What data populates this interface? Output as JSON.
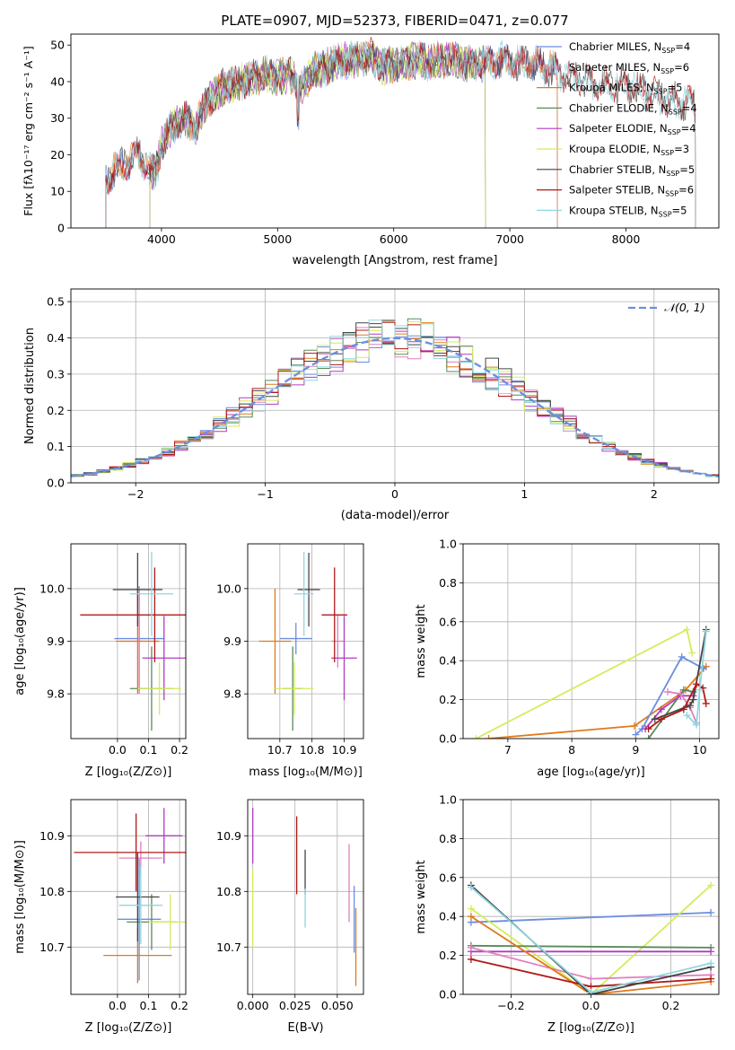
{
  "figure_title": "PLATE=0907, MJD=52373, FIBERID=0471, z=0.077",
  "colors": {
    "Chabrier MILES": "#6a8ee0",
    "Salpeter MILES": "#e07fbf",
    "Kroupa MILES": "#e07a1a",
    "Chabrier ELODIE": "#5a8a5a",
    "Salpeter ELODIE": "#b03cc0",
    "Kroupa ELODIE": "#d4ec5a",
    "Chabrier STELIB": "#444444",
    "Salpeter STELIB": "#b01818",
    "Kroupa STELIB": "#8fd6e0",
    "gaussian": "#6a8ee0"
  },
  "chart_data": [
    {
      "type": "line",
      "id": "spectrum",
      "title": "PLATE=0907, MJD=52373, FIBERID=0471, z=0.077",
      "xlabel": "wavelength [Angstrom, rest frame]",
      "ylabel": "Flux [fλ10⁻¹⁷ erg cm⁻² s⁻¹ A⁻¹]",
      "xlim": [
        3220,
        8800
      ],
      "ylim": [
        0,
        53
      ],
      "xticks": [
        4000,
        5000,
        6000,
        7000,
        8000
      ],
      "yticks": [
        0,
        10,
        20,
        30,
        40,
        50
      ],
      "grid": false,
      "legend_position": "top-right",
      "legend": [
        {
          "label": "Chabrier MILES, N",
          "sub": "SSP",
          "tail": "=4"
        },
        {
          "label": "Salpeter MILES, N",
          "sub": "SSP",
          "tail": "=6"
        },
        {
          "label": "Kroupa MILES, N",
          "sub": "SSP",
          "tail": "=5"
        },
        {
          "label": "Chabrier ELODIE, N",
          "sub": "SSP",
          "tail": "=4"
        },
        {
          "label": "Salpeter ELODIE, N",
          "sub": "SSP",
          "tail": "=4"
        },
        {
          "label": "Kroupa ELODIE, N",
          "sub": "SSP",
          "tail": "=3"
        },
        {
          "label": "Chabrier STELIB, N",
          "sub": "SSP",
          "tail": "=5"
        },
        {
          "label": "Salpeter STELIB, N",
          "sub": "SSP",
          "tail": "=6"
        },
        {
          "label": "Kroupa STELIB, N",
          "sub": "SSP",
          "tail": "=5"
        }
      ],
      "continuum": [
        [
          3500,
          12
        ],
        [
          3600,
          16
        ],
        [
          3700,
          18
        ],
        [
          3800,
          20
        ],
        [
          3900,
          16
        ],
        [
          3950,
          15
        ],
        [
          4000,
          23
        ],
        [
          4100,
          28
        ],
        [
          4200,
          30
        ],
        [
          4300,
          28
        ],
        [
          4400,
          35
        ],
        [
          4500,
          38
        ],
        [
          4600,
          39
        ],
        [
          4700,
          40
        ],
        [
          4800,
          41
        ],
        [
          4900,
          42
        ],
        [
          5000,
          41
        ],
        [
          5100,
          42
        ],
        [
          5175,
          40
        ],
        [
          5200,
          38
        ],
        [
          5300,
          43
        ],
        [
          5400,
          44
        ],
        [
          5500,
          45
        ],
        [
          5600,
          46
        ],
        [
          5700,
          46
        ],
        [
          5800,
          47
        ],
        [
          5900,
          44
        ],
        [
          6000,
          45
        ],
        [
          6100,
          45
        ],
        [
          6200,
          46
        ],
        [
          6300,
          45
        ],
        [
          6400,
          46
        ],
        [
          6500,
          46
        ],
        [
          6600,
          45
        ],
        [
          6700,
          45
        ],
        [
          6800,
          45
        ],
        [
          6900,
          46
        ],
        [
          7000,
          46
        ],
        [
          7100,
          45
        ],
        [
          7200,
          45
        ],
        [
          7300,
          44
        ],
        [
          7400,
          43
        ],
        [
          7500,
          42
        ],
        [
          7600,
          41
        ],
        [
          7700,
          40
        ],
        [
          7800,
          39
        ],
        [
          7900,
          39
        ],
        [
          8000,
          39
        ],
        [
          8100,
          38
        ],
        [
          8200,
          37
        ],
        [
          8300,
          36
        ],
        [
          8400,
          35
        ],
        [
          8600,
          34
        ]
      ],
      "series": [
        {
          "name": "Chabrier MILES",
          "range": [
            3520,
            7410
          ]
        },
        {
          "name": "Salpeter MILES",
          "range": [
            3520,
            7410
          ]
        },
        {
          "name": "Kroupa MILES",
          "range": [
            3520,
            7410
          ]
        },
        {
          "name": "Chabrier ELODIE",
          "range": [
            3900,
            6790
          ]
        },
        {
          "name": "Salpeter ELODIE",
          "range": [
            3900,
            6790
          ]
        },
        {
          "name": "Kroupa ELODIE",
          "range": [
            3900,
            6790
          ]
        },
        {
          "name": "Chabrier STELIB",
          "range": [
            3520,
            8600
          ]
        },
        {
          "name": "Salpeter STELIB",
          "range": [
            3520,
            8600
          ]
        },
        {
          "name": "Kroupa STELIB",
          "range": [
            3520,
            8600
          ]
        }
      ]
    },
    {
      "type": "bar",
      "id": "residuals",
      "xlabel": "(data-model)/error",
      "ylabel": "Normed distribution",
      "xlim": [
        -2.5,
        2.5
      ],
      "ylim": [
        0,
        0.535
      ],
      "xticks": [
        -2,
        -1,
        0,
        1,
        2
      ],
      "yticks": [
        0.0,
        0.1,
        0.2,
        0.3,
        0.4,
        0.5
      ],
      "grid": true,
      "bin_width": 0.1,
      "legend": "𝒩(0, 1)",
      "legend_position": "top-right",
      "reference_curve": "normal(0,1)"
    },
    {
      "type": "scatter",
      "id": "age-vs-Z",
      "xlabel": "Z [log₁₀(Z/Z⊙)]",
      "ylabel": "age  [log₁₀(age/yr)]",
      "xlim": [
        -0.15,
        0.22
      ],
      "ylim": [
        9.715,
        10.085
      ],
      "xticks": [
        0.0,
        0.1,
        0.2
      ],
      "yticks": [
        9.8,
        9.9,
        10.0
      ],
      "grid": true,
      "points": [
        {
          "name": "Chabrier MILES",
          "x": 0.07,
          "xerr": 0.08,
          "y": 9.905,
          "yerr": 0.1
        },
        {
          "name": "Salpeter MILES",
          "x": 0.07,
          "xerr": 0.06,
          "y": 9.9,
          "yerr": 0.1
        },
        {
          "name": "Kroupa MILES",
          "x": 0.065,
          "xerr": 0.07,
          "y": 9.9,
          "yerr": 0.1
        },
        {
          "name": "Chabrier ELODIE",
          "x": 0.11,
          "xerr": 0.07,
          "y": 9.81,
          "yerr": 0.08
        },
        {
          "name": "Salpeter ELODIE",
          "x": 0.15,
          "xerr": 0.07,
          "y": 9.868,
          "yerr": 0.08
        },
        {
          "name": "Kroupa ELODIE",
          "x": 0.135,
          "xerr": 0.07,
          "y": 9.81,
          "yerr": 0.05
        },
        {
          "name": "Chabrier STELIB",
          "x": 0.065,
          "xerr": 0.08,
          "y": 9.998,
          "yerr": 0.07
        },
        {
          "name": "Salpeter STELIB",
          "x": 0.12,
          "xerr": 0.24,
          "y": 9.95,
          "yerr": 0.09
        },
        {
          "name": "Kroupa STELIB",
          "x": 0.11,
          "xerr": 0.07,
          "y": 9.99,
          "yerr": 0.08
        }
      ]
    },
    {
      "type": "scatter",
      "id": "age-vs-mass",
      "xlabel": "mass [log₁₀(M/M⊙)]",
      "xlim": [
        10.6,
        10.96
      ],
      "ylim": [
        9.715,
        10.085
      ],
      "xticks": [
        10.7,
        10.8,
        10.9
      ],
      "yticks": [
        9.8,
        9.9,
        10.0
      ],
      "grid": true,
      "points": [
        {
          "name": "Chabrier MILES",
          "x": 10.75,
          "xerr": 0.05,
          "y": 9.905,
          "yerr": 0.03
        },
        {
          "name": "Salpeter MILES",
          "x": 10.88,
          "xerr": 0.02,
          "y": 9.9,
          "yerr": 0.05
        },
        {
          "name": "Kroupa MILES",
          "x": 10.685,
          "xerr": 0.05,
          "y": 9.9,
          "yerr": 0.1
        },
        {
          "name": "Chabrier ELODIE",
          "x": 10.74,
          "xerr": 0.03,
          "y": 9.81,
          "yerr": 0.08
        },
        {
          "name": "Salpeter ELODIE",
          "x": 10.9,
          "xerr": 0.04,
          "y": 9.868,
          "yerr": 0.08
        },
        {
          "name": "Kroupa ELODIE",
          "x": 10.745,
          "xerr": 0.06,
          "y": 9.81,
          "yerr": 0.05
        },
        {
          "name": "Chabrier STELIB",
          "x": 10.79,
          "xerr": 0.035,
          "y": 9.998,
          "yerr": 0.07
        },
        {
          "name": "Salpeter STELIB",
          "x": 10.87,
          "xerr": 0.04,
          "y": 9.95,
          "yerr": 0.09
        },
        {
          "name": "Kroupa STELIB",
          "x": 10.775,
          "xerr": 0.03,
          "y": 9.99,
          "yerr": 0.08
        }
      ]
    },
    {
      "type": "line",
      "id": "massweight-vs-age",
      "xlabel": "age  [log₁₀(age/yr)]",
      "ylabel": "mass weight",
      "xlim": [
        6.3,
        10.3
      ],
      "ylim": [
        0,
        1
      ],
      "xticks": [
        7,
        8,
        9,
        10
      ],
      "yticks": [
        0.0,
        0.2,
        0.4,
        0.6,
        0.8,
        1.0
      ],
      "grid": true,
      "series": [
        {
          "name": "Kroupa MILES",
          "x": [
            6.7,
            8.98,
            9.78,
            10.1
          ],
          "y": [
            0.0,
            0.065,
            0.25,
            0.37
          ]
        },
        {
          "name": "Kroupa ELODIE",
          "x": [
            6.5,
            9.8,
            9.88
          ],
          "y": [
            0.0,
            0.56,
            0.44
          ]
        },
        {
          "name": "Chabrier MILES",
          "x": [
            9.0,
            9.1,
            9.72,
            10.06
          ],
          "y": [
            0.02,
            0.05,
            0.42,
            0.36
          ]
        },
        {
          "name": "Chabrier ELODIE",
          "x": [
            9.2,
            9.75,
            9.9
          ],
          "y": [
            0.0,
            0.25,
            0.24
          ]
        },
        {
          "name": "Salpeter ELODIE",
          "x": [
            9.15,
            9.4,
            9.7,
            9.9
          ],
          "y": [
            0.05,
            0.15,
            0.22,
            0.22
          ]
        },
        {
          "name": "Salpeter MILES",
          "x": [
            9.5,
            9.7,
            9.85,
            9.95
          ],
          "y": [
            0.24,
            0.23,
            0.16,
            0.08
          ]
        },
        {
          "name": "Chabrier STELIB",
          "x": [
            9.3,
            9.85,
            9.9,
            10.1
          ],
          "y": [
            0.1,
            0.17,
            0.2,
            0.56
          ]
        },
        {
          "name": "Salpeter STELIB",
          "x": [
            9.2,
            9.4,
            9.75,
            9.95,
            10.05,
            10.1
          ],
          "y": [
            0.05,
            0.1,
            0.15,
            0.28,
            0.26,
            0.18
          ]
        },
        {
          "name": "Kroupa STELIB",
          "x": [
            9.8,
            9.95,
            10.0,
            10.1
          ],
          "y": [
            0.12,
            0.07,
            0.25,
            0.55
          ]
        }
      ]
    },
    {
      "type": "scatter",
      "id": "mass-vs-Z",
      "xlabel": "Z [log₁₀(Z/Z⊙)]",
      "ylabel": "mass [log₁₀(M/M⊙)]",
      "xlim": [
        -0.15,
        0.22
      ],
      "ylim": [
        10.615,
        10.965
      ],
      "xticks": [
        0.0,
        0.1,
        0.2
      ],
      "yticks": [
        10.7,
        10.8,
        10.9
      ],
      "grid": true,
      "points": [
        {
          "name": "Chabrier MILES",
          "x": 0.07,
          "xerr": 0.07,
          "y": 10.75,
          "yerr": 0.11
        },
        {
          "name": "Salpeter MILES",
          "x": 0.075,
          "xerr": 0.07,
          "y": 10.86,
          "yerr": 0.03
        },
        {
          "name": "Kroupa MILES",
          "x": 0.065,
          "xerr": 0.11,
          "y": 10.685,
          "yerr": 0.05
        },
        {
          "name": "Chabrier ELODIE",
          "x": 0.11,
          "xerr": 0.08,
          "y": 10.745,
          "yerr": 0.05
        },
        {
          "name": "Salpeter ELODIE",
          "x": 0.15,
          "xerr": 0.06,
          "y": 10.9,
          "yerr": 0.05
        },
        {
          "name": "Kroupa ELODIE",
          "x": 0.17,
          "xerr": 0.07,
          "y": 10.745,
          "yerr": 0.05
        },
        {
          "name": "Chabrier STELIB",
          "x": 0.065,
          "xerr": 0.07,
          "y": 10.79,
          "yerr": 0.08
        },
        {
          "name": "Salpeter STELIB",
          "x": 0.06,
          "xerr": 0.2,
          "y": 10.87,
          "yerr": 0.07
        },
        {
          "name": "Kroupa STELIB",
          "x": 0.075,
          "xerr": 0.07,
          "y": 10.775,
          "yerr": 0.07
        }
      ]
    },
    {
      "type": "scatter",
      "id": "mass-vs-ebv",
      "xlabel": "E(B-V)",
      "xlim": [
        -0.003,
        0.0655
      ],
      "ylim": [
        10.615,
        10.965
      ],
      "xticks": [
        0.0,
        0.025,
        0.05
      ],
      "xtick_labels": [
        "0.000",
        "0.025",
        "0.050"
      ],
      "yticks": [
        10.7,
        10.8,
        10.9
      ],
      "grid": true,
      "points": [
        {
          "name": "Salpeter ELODIE",
          "x": 0.0,
          "y": 10.9,
          "yerr": 0.05
        },
        {
          "name": "Kroupa ELODIE",
          "x": 0.0,
          "y": 10.77,
          "yerr": 0.07
        },
        {
          "name": "Salpeter STELIB",
          "x": 0.026,
          "y": 10.865,
          "yerr": 0.07
        },
        {
          "name": "Chabrier STELIB",
          "x": 0.031,
          "y": 10.835,
          "yerr": 0.04
        },
        {
          "name": "Kroupa STELIB",
          "x": 0.031,
          "y": 10.77,
          "yerr": 0.035
        },
        {
          "name": "Salpeter MILES",
          "x": 0.057,
          "y": 10.815,
          "yerr": 0.07
        },
        {
          "name": "Chabrier MILES",
          "x": 0.06,
          "y": 10.75,
          "yerr": 0.06
        },
        {
          "name": "Kroupa MILES",
          "x": 0.061,
          "y": 10.7,
          "yerr": 0.07
        }
      ]
    },
    {
      "type": "line",
      "id": "massweight-vs-Z",
      "xlabel": "Z [log₁₀(Z/Z⊙)]",
      "ylabel": "mass weight",
      "xlim": [
        -0.32,
        0.32
      ],
      "ylim": [
        0,
        1
      ],
      "xticks": [
        -0.2,
        0.0,
        0.2
      ],
      "yticks": [
        0.0,
        0.2,
        0.4,
        0.6,
        0.8,
        1.0
      ],
      "grid": true,
      "series": [
        {
          "name": "Chabrier MILES",
          "x": [
            -0.3,
            0.3
          ],
          "y": [
            0.37,
            0.42
          ]
        },
        {
          "name": "Kroupa ELODIE",
          "x": [
            -0.3,
            0.0,
            0.3
          ],
          "y": [
            0.44,
            0.0,
            0.56
          ]
        },
        {
          "name": "Chabrier ELODIE",
          "x": [
            -0.3,
            0.3
          ],
          "y": [
            0.25,
            0.24
          ]
        },
        {
          "name": "Salpeter ELODIE",
          "x": [
            -0.3,
            0.3
          ],
          "y": [
            0.22,
            0.22
          ]
        },
        {
          "name": "Salpeter MILES",
          "x": [
            -0.3,
            0.0,
            0.3
          ],
          "y": [
            0.24,
            0.08,
            0.1
          ]
        },
        {
          "name": "Kroupa MILES",
          "x": [
            -0.3,
            0.0,
            0.3
          ],
          "y": [
            0.4,
            0.0,
            0.065
          ]
        },
        {
          "name": "Salpeter STELIB",
          "x": [
            -0.3,
            0.0,
            0.3
          ],
          "y": [
            0.18,
            0.04,
            0.08
          ]
        },
        {
          "name": "Chabrier STELIB",
          "x": [
            -0.3,
            0.0,
            0.3
          ],
          "y": [
            0.56,
            0.0,
            0.14
          ]
        },
        {
          "name": "Kroupa STELIB",
          "x": [
            -0.3,
            0.0,
            0.3
          ],
          "y": [
            0.55,
            0.01,
            0.16
          ]
        }
      ]
    }
  ]
}
